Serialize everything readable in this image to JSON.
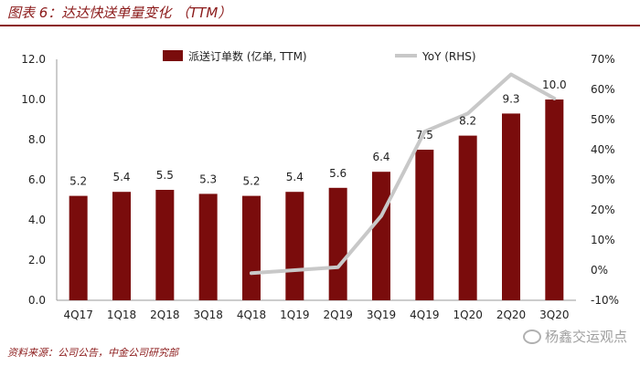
{
  "header": {
    "title": "图表 6：达达快送单量变化 （TTM）"
  },
  "footer": {
    "source": "资料来源：公司公告，中金公司研究部",
    "watermark": "杨鑫交运观点",
    "watermark_icon": "wechat-icon"
  },
  "chart_data": {
    "type": "bar",
    "categories": [
      "4Q17",
      "1Q18",
      "2Q18",
      "3Q18",
      "4Q18",
      "1Q19",
      "2Q19",
      "3Q19",
      "4Q19",
      "1Q20",
      "2Q20",
      "3Q20"
    ],
    "series": [
      {
        "name": "派送订单数 (亿单, TTM)",
        "type": "bar",
        "axis": "left",
        "color": "#7a0c0c",
        "values": [
          5.2,
          5.4,
          5.5,
          5.3,
          5.2,
          5.4,
          5.6,
          6.4,
          7.5,
          8.2,
          9.3,
          10.0
        ],
        "data_labels": [
          "5.2",
          "5.4",
          "5.5",
          "5.3",
          "5.2",
          "5.4",
          "5.6",
          "6.4",
          "7.5",
          "8.2",
          "9.3",
          "10.0"
        ]
      },
      {
        "name": "YoY (RHS)",
        "type": "line",
        "axis": "right",
        "color": "#c8c8c8",
        "values": [
          null,
          null,
          null,
          null,
          -0.01,
          0.0,
          0.01,
          0.18,
          0.46,
          0.52,
          0.65,
          0.57
        ]
      }
    ],
    "y_left": {
      "min": 0,
      "max": 12,
      "ticks": [
        "0.0",
        "2.0",
        "4.0",
        "6.0",
        "8.0",
        "10.0",
        "12.0"
      ]
    },
    "y_right": {
      "min": -0.1,
      "max": 0.7,
      "ticks": [
        "-10%",
        "0%",
        "10%",
        "20%",
        "30%",
        "40%",
        "50%",
        "60%",
        "70%"
      ]
    },
    "legend_position": "top",
    "grid": false
  }
}
